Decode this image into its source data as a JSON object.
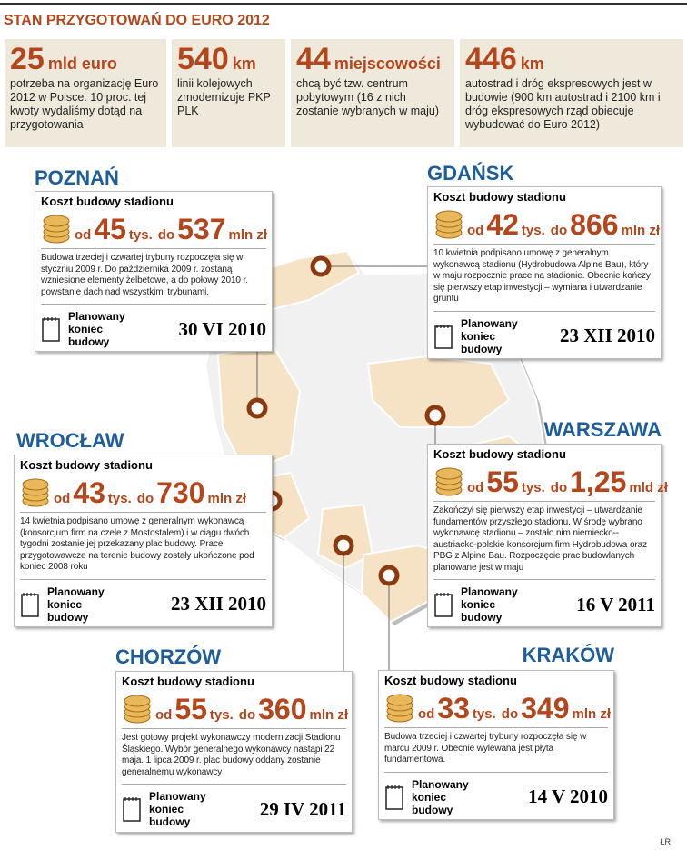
{
  "header": {
    "title": "STAN PRZYGOTOWAŃ DO EURO 2012"
  },
  "stats": [
    {
      "number": "25",
      "unit": "mld euro",
      "text": "potrzeba na organizację Euro 2012 w Polsce. 10 proc. tej kwoty wydaliśmy dotąd na przygotowania"
    },
    {
      "number": "540",
      "unit": "km",
      "text": "linii kolejowych zmodernizuje PKP PLK"
    },
    {
      "number": "44",
      "unit": "miejscowości",
      "text": "chcą być tzw. centrum pobytowym (16 z nich zostanie wybranych w maju)"
    },
    {
      "number": "446",
      "unit": "km",
      "text": "autostrad i dróg ekspresowych jest w budowie (900 km autostrad i 2100 km i dróg ekspresowych rząd obiecuje wybudować do Euro 2012)"
    }
  ],
  "stadiums": [
    {
      "city": "POZNAŃ",
      "cost_label": "Koszt budowy stadionu",
      "from_word": "od",
      "from_value": "45",
      "from_unit": "tys.",
      "to_word": "do",
      "to_value": "537",
      "to_unit": "mln zł",
      "description": "Budowa trzeciej i czwartej trybuny rozpoczęła się w styczniu 2009 r. Do października 2009 r. zostaną wzniesione elementy żelbetowe, a do połowy 2010 r. powstanie dach nad wszystkimi trybunami.",
      "end_label": "Planowany koniec budowy",
      "end_date": "30 VI 2010"
    },
    {
      "city": "GDAŃSK",
      "cost_label": "Koszt budowy stadionu",
      "from_word": "od",
      "from_value": "42",
      "from_unit": "tys.",
      "to_word": "do",
      "to_value": "866",
      "to_unit": "mln zł",
      "description": "10 kwietnia podpisano umowę z generalnym wykonawcą stadionu (Hydrobudowa Alpine Bau), który w maju rozpocznie prace na stadionie. Obecnie kończy się pierwszy etap inwestycji – wymiana i utwardzanie gruntu",
      "end_label": "Planowany koniec budowy",
      "end_date": "23 XII 2010"
    },
    {
      "city": "WROCŁAW",
      "cost_label": "Koszt budowy stadionu",
      "from_word": "od",
      "from_value": "43",
      "from_unit": "tys.",
      "to_word": "do",
      "to_value": "730",
      "to_unit": "mln zł",
      "description": "14 kwietnia podpisano umowę z generalnym wykonawcą (konsorcjum firm na czele z Mostostalem) i w ciągu dwóch tygodni zostanie jej przekazany plac budowy. Prace przygotowawcze na terenie budowy zostały ukończone pod koniec 2008 roku",
      "end_label": "Planowany koniec budowy",
      "end_date": "23 XII 2010"
    },
    {
      "city": "WARSZAWA",
      "cost_label": "Koszt budowy stadionu",
      "from_word": "od",
      "from_value": "55",
      "from_unit": "tys.",
      "to_word": "do",
      "to_value": "1,25",
      "to_unit": "mld zł",
      "description": "Zakończył się pierwszy etap inwestycji – utwardzanie fundamentów przyszłego stadionu. W środę wybrano wykonawcę stadionu – zostało nim niemiecko--austriacko-polskie konsorcjum firm Hydrobudowa oraz PBG z Alpine Bau. Rozpoczęcie prac budowlanych planowane jest w maju",
      "end_label": "Planowany koniec budowy",
      "end_date": "16 V 2011"
    },
    {
      "city": "CHORZÓW",
      "cost_label": "Koszt budowy stadionu",
      "from_word": "od",
      "from_value": "55",
      "from_unit": "tys.",
      "to_word": "do",
      "to_value": "360",
      "to_unit": "mln zł",
      "description": "Jest gotowy projekt wykonawczy modernizacji Stadionu Śląskiego. Wybór generalnego wykonawcy nastąpi 22 maja. 1 lipca 2009 r. plac budowy oddany zostanie generalnemu wykonawcy",
      "end_label": "Planowany koniec budowy",
      "end_date": "29 IV 2011"
    },
    {
      "city": "KRAKÓW",
      "cost_label": "Koszt budowy stadionu",
      "from_word": "od",
      "from_value": "33",
      "from_unit": "tys.",
      "to_word": "do",
      "to_value": "349",
      "to_unit": "mln zł",
      "description": "Budowa trzeciej i czwartej trybuny rozpoczęła się w marcu 2009 r. Obecnie wylewana jest płyta fundamentowa.",
      "end_label": "Planowany koniec budowy",
      "end_date": "14 V 2010"
    }
  ],
  "credit": "ŁR"
}
